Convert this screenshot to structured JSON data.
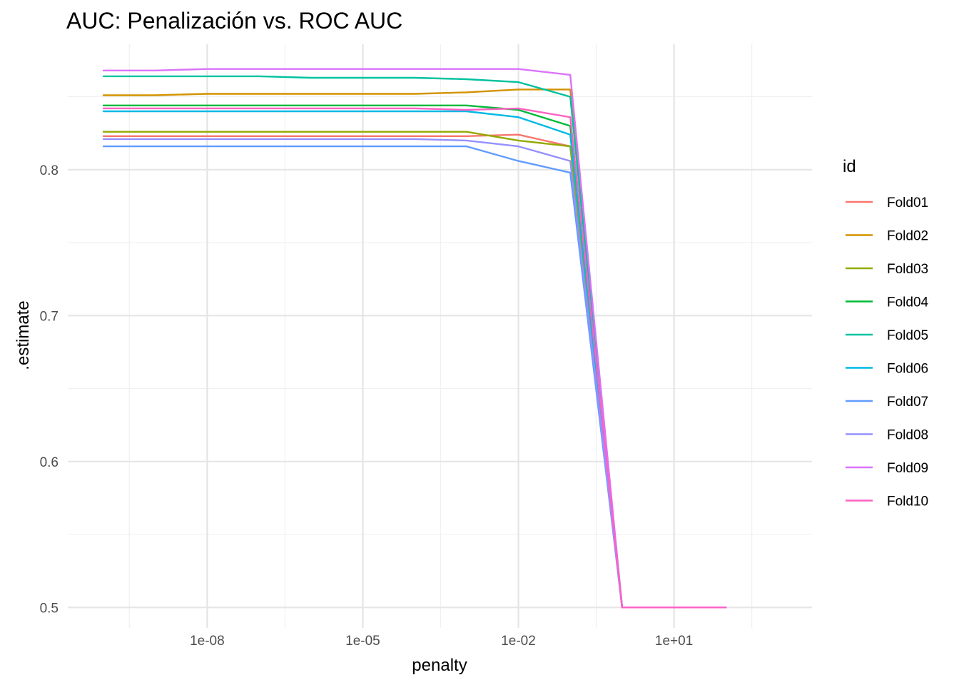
{
  "chart_data": {
    "type": "line",
    "title": "AUC: Penalización vs. ROC AUC",
    "xlabel": "penalty",
    "ylabel": ".estimate",
    "x_scale": "log10",
    "xlim": [
      1e-10,
      1000
    ],
    "ylim": [
      0.485,
      0.885
    ],
    "x_ticks": [
      {
        "value": 1e-08,
        "label": "1e-08"
      },
      {
        "value": 1e-05,
        "label": "1e-05"
      },
      {
        "value": 0.01,
        "label": "1e-02"
      },
      {
        "value": 10,
        "label": "1e+01"
      }
    ],
    "y_ticks": [
      {
        "value": 0.5,
        "label": "0.5"
      },
      {
        "value": 0.6,
        "label": "0.6"
      },
      {
        "value": 0.7,
        "label": "0.7"
      },
      {
        "value": 0.8,
        "label": "0.8"
      }
    ],
    "grid": true,
    "legend": {
      "title": "id",
      "position": "right"
    },
    "penalty_values": [
      1e-10,
      1e-09,
      1e-08,
      1e-07,
      1e-06,
      1e-05,
      0.0001,
      0.001,
      0.01,
      0.1,
      1,
      10,
      100
    ],
    "series": [
      {
        "name": "Fold01",
        "color": "#F8766D",
        "values": [
          0.823,
          0.823,
          0.823,
          0.823,
          0.823,
          0.823,
          0.823,
          0.823,
          0.824,
          0.816,
          0.5,
          0.5,
          0.5
        ]
      },
      {
        "name": "Fold02",
        "color": "#D39200",
        "values": [
          0.851,
          0.851,
          0.852,
          0.852,
          0.852,
          0.852,
          0.852,
          0.853,
          0.855,
          0.855,
          0.5,
          0.5,
          0.5
        ]
      },
      {
        "name": "Fold03",
        "color": "#93AA00",
        "values": [
          0.826,
          0.826,
          0.826,
          0.826,
          0.826,
          0.826,
          0.826,
          0.826,
          0.82,
          0.816,
          0.5,
          0.5,
          0.5
        ]
      },
      {
        "name": "Fold04",
        "color": "#00BA38",
        "values": [
          0.844,
          0.844,
          0.844,
          0.844,
          0.844,
          0.844,
          0.844,
          0.844,
          0.841,
          0.83,
          0.5,
          0.5,
          0.5
        ]
      },
      {
        "name": "Fold05",
        "color": "#00C19F",
        "values": [
          0.864,
          0.864,
          0.864,
          0.864,
          0.863,
          0.863,
          0.863,
          0.862,
          0.86,
          0.85,
          0.5,
          0.5,
          0.5
        ]
      },
      {
        "name": "Fold06",
        "color": "#00B9E3",
        "values": [
          0.84,
          0.84,
          0.84,
          0.84,
          0.84,
          0.84,
          0.84,
          0.84,
          0.836,
          0.824,
          0.5,
          0.5,
          0.5
        ]
      },
      {
        "name": "Fold07",
        "color": "#619CFF",
        "values": [
          0.816,
          0.816,
          0.816,
          0.816,
          0.816,
          0.816,
          0.816,
          0.816,
          0.806,
          0.798,
          0.5,
          0.5,
          0.5
        ]
      },
      {
        "name": "Fold08",
        "color": "#9590FF",
        "values": [
          0.821,
          0.821,
          0.821,
          0.821,
          0.821,
          0.821,
          0.821,
          0.82,
          0.816,
          0.806,
          0.5,
          0.5,
          0.5
        ]
      },
      {
        "name": "Fold09",
        "color": "#DB72FB",
        "values": [
          0.868,
          0.868,
          0.869,
          0.869,
          0.869,
          0.869,
          0.869,
          0.869,
          0.869,
          0.865,
          0.5,
          0.5,
          0.5
        ]
      },
      {
        "name": "Fold10",
        "color": "#FF61C3",
        "values": [
          0.842,
          0.842,
          0.842,
          0.842,
          0.842,
          0.842,
          0.842,
          0.841,
          0.842,
          0.836,
          0.5,
          0.5,
          0.5
        ]
      }
    ]
  }
}
